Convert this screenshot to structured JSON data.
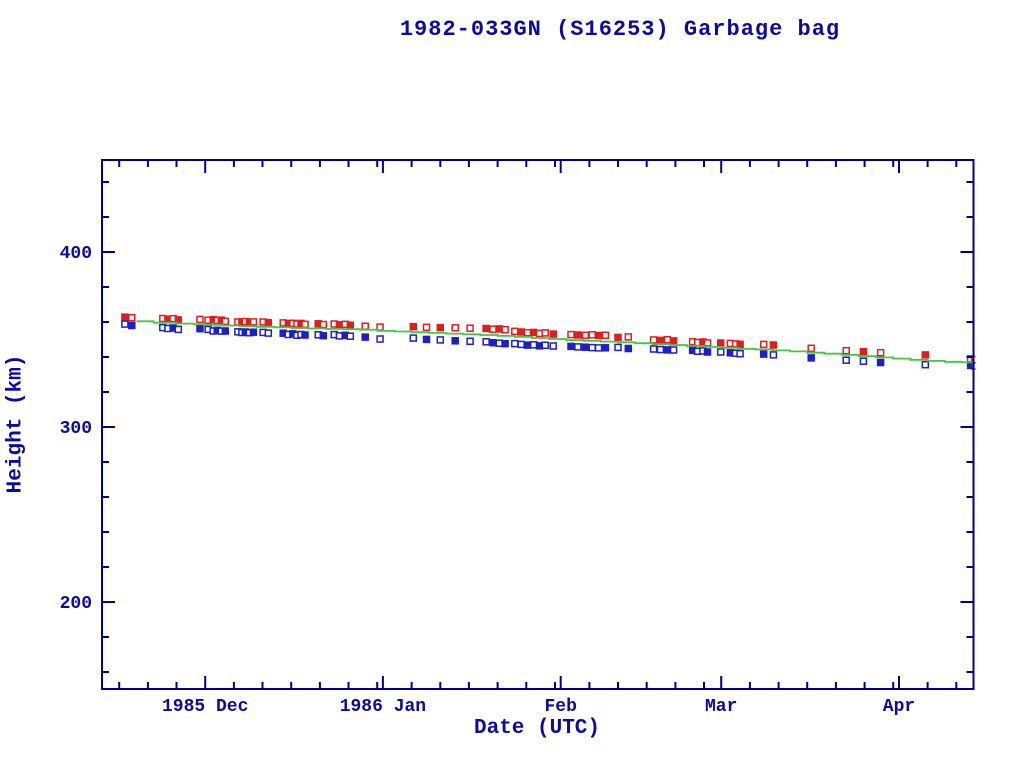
{
  "title": "1982-033GN (S16253) Garbage bag",
  "axes": {
    "x_label": "Date (UTC)",
    "y_label": "Height (km)",
    "x_major_ticks": [
      {
        "day": 18,
        "label": "1985 Dec"
      },
      {
        "day": 49,
        "label": "1986 Jan"
      },
      {
        "day": 80,
        "label": "Feb"
      },
      {
        "day": 108,
        "label": "Mar"
      },
      {
        "day": 139,
        "label": "Apr"
      }
    ],
    "x_minor_tick_days": [
      3,
      8,
      13,
      23,
      28,
      33,
      38,
      43,
      48,
      54,
      59,
      64,
      69,
      74,
      79,
      85,
      90,
      95,
      100,
      105,
      113,
      118,
      123,
      128,
      133,
      138,
      144,
      149
    ],
    "y_major_ticks": [
      {
        "value": 200,
        "label": "200"
      },
      {
        "value": 300,
        "label": "300"
      },
      {
        "value": 400,
        "label": "400"
      }
    ],
    "y_minor_tick_values": [
      160,
      180,
      220,
      240,
      260,
      280,
      320,
      340,
      360,
      380,
      420,
      440
    ]
  },
  "colors": {
    "frame": "#000090",
    "text": "#0b0ba0",
    "apogee": "#dd1f1f",
    "perigee": "#1f1fc8",
    "fit_line": "#44c544",
    "background": "#ffffff"
  },
  "chart_data": {
    "type": "scatter",
    "title": "1982-033GN (S16253) Garbage bag",
    "xlabel": "Date (UTC)",
    "ylabel": "Height (km)",
    "x_encoding": "days from left plot edge (mid-Nov 1985); Dec 1=18, Jan 1=49, Feb 1=80, Mar 1=108, Apr 1=139",
    "xlim_days": [
      0,
      152
    ],
    "ylim": [
      150.3,
      452.6
    ],
    "grid": false,
    "legend": "none",
    "series": [
      {
        "name": "apogee height",
        "marker": "square",
        "color": "#dd1f1f",
        "points": [
          [
            4.0,
            362.8
          ],
          [
            5.2,
            362.5
          ],
          [
            10.6,
            362.0
          ],
          [
            11.5,
            361.6
          ],
          [
            12.4,
            361.9
          ],
          [
            13.3,
            361.2
          ],
          [
            17.1,
            361.5
          ],
          [
            18.5,
            361.0
          ],
          [
            19.4,
            361.4
          ],
          [
            20.1,
            360.9
          ],
          [
            20.8,
            361.1
          ],
          [
            21.5,
            360.4
          ],
          [
            23.7,
            360.1
          ],
          [
            24.4,
            360.0
          ],
          [
            25.0,
            360.3
          ],
          [
            25.7,
            359.9
          ],
          [
            26.4,
            360.1
          ],
          [
            28.1,
            360.0
          ],
          [
            29.0,
            359.6
          ],
          [
            31.6,
            359.5
          ],
          [
            32.5,
            359.1
          ],
          [
            33.3,
            359.3
          ],
          [
            34.0,
            358.8
          ],
          [
            34.7,
            359.2
          ],
          [
            35.4,
            358.7
          ],
          [
            37.7,
            359.0
          ],
          [
            38.6,
            358.6
          ],
          [
            40.5,
            358.9
          ],
          [
            41.4,
            358.4
          ],
          [
            42.4,
            358.7
          ],
          [
            43.3,
            358.2
          ],
          [
            45.9,
            357.6
          ],
          [
            48.5,
            357.1
          ],
          [
            54.3,
            357.4
          ],
          [
            56.6,
            357.0
          ],
          [
            59.0,
            356.8
          ],
          [
            61.6,
            356.7
          ],
          [
            64.2,
            356.5
          ],
          [
            67.0,
            356.3
          ],
          [
            68.2,
            355.9
          ],
          [
            69.3,
            356.1
          ],
          [
            70.3,
            355.6
          ],
          [
            72.0,
            354.7
          ],
          [
            73.1,
            354.3
          ],
          [
            74.2,
            353.9
          ],
          [
            75.3,
            354.1
          ],
          [
            76.3,
            353.5
          ],
          [
            77.3,
            353.8
          ],
          [
            78.7,
            353.1
          ],
          [
            81.8,
            352.8
          ],
          [
            83.0,
            352.6
          ],
          [
            84.3,
            352.4
          ],
          [
            85.5,
            352.7
          ],
          [
            86.6,
            352.3
          ],
          [
            87.8,
            352.5
          ],
          [
            90.0,
            351.2
          ],
          [
            91.8,
            351.5
          ],
          [
            96.2,
            349.8
          ],
          [
            97.4,
            349.5
          ],
          [
            98.6,
            349.9
          ],
          [
            99.7,
            349.2
          ],
          [
            103.0,
            348.7
          ],
          [
            103.9,
            348.3
          ],
          [
            104.8,
            348.6
          ],
          [
            105.6,
            348.1
          ],
          [
            107.9,
            348.0
          ],
          [
            109.6,
            347.8
          ],
          [
            110.5,
            347.5
          ],
          [
            111.3,
            347.3
          ],
          [
            115.4,
            347.2
          ],
          [
            117.1,
            346.9
          ],
          [
            123.7,
            345.0
          ],
          [
            129.8,
            343.6
          ],
          [
            132.8,
            343.1
          ],
          [
            135.8,
            342.5
          ],
          [
            143.6,
            341.2
          ],
          [
            151.5,
            339.0
          ],
          [
            152.2,
            338.6
          ]
        ]
      },
      {
        "name": "perigee height",
        "marker": "square",
        "color": "#1f1fc8",
        "points": [
          [
            4.0,
            358.8
          ],
          [
            5.2,
            358.0
          ],
          [
            10.6,
            356.8
          ],
          [
            11.5,
            356.3
          ],
          [
            12.4,
            356.6
          ],
          [
            13.3,
            355.8
          ],
          [
            17.1,
            356.2
          ],
          [
            18.5,
            355.8
          ],
          [
            19.4,
            354.9
          ],
          [
            20.1,
            355.3
          ],
          [
            20.8,
            354.8
          ],
          [
            21.5,
            354.9
          ],
          [
            23.7,
            354.4
          ],
          [
            24.4,
            354.0
          ],
          [
            25.0,
            354.3
          ],
          [
            25.7,
            353.9
          ],
          [
            26.4,
            354.2
          ],
          [
            28.1,
            354.1
          ],
          [
            29.0,
            353.7
          ],
          [
            31.6,
            353.6
          ],
          [
            32.5,
            352.9
          ],
          [
            33.3,
            353.3
          ],
          [
            34.0,
            352.4
          ],
          [
            34.7,
            352.9
          ],
          [
            35.4,
            352.6
          ],
          [
            37.7,
            352.7
          ],
          [
            38.6,
            352.2
          ],
          [
            40.5,
            352.8
          ],
          [
            41.4,
            352.1
          ],
          [
            42.4,
            352.4
          ],
          [
            43.3,
            351.9
          ],
          [
            45.9,
            351.4
          ],
          [
            48.5,
            350.3
          ],
          [
            54.3,
            350.8
          ],
          [
            56.6,
            350.1
          ],
          [
            59.0,
            349.8
          ],
          [
            61.6,
            349.3
          ],
          [
            64.2,
            349.0
          ],
          [
            67.0,
            348.7
          ],
          [
            68.2,
            348.2
          ],
          [
            69.3,
            347.9
          ],
          [
            70.3,
            347.6
          ],
          [
            72.0,
            347.7
          ],
          [
            73.1,
            347.2
          ],
          [
            74.2,
            346.8
          ],
          [
            75.3,
            347.0
          ],
          [
            76.3,
            346.4
          ],
          [
            77.3,
            346.7
          ],
          [
            78.7,
            346.3
          ],
          [
            81.8,
            346.1
          ],
          [
            83.0,
            345.8
          ],
          [
            84.3,
            345.6
          ],
          [
            85.5,
            345.4
          ],
          [
            86.6,
            345.2
          ],
          [
            87.8,
            345.3
          ],
          [
            90.0,
            345.5
          ],
          [
            91.8,
            344.9
          ],
          [
            96.2,
            344.6
          ],
          [
            97.4,
            344.3
          ],
          [
            98.6,
            344.1
          ],
          [
            99.7,
            344.0
          ],
          [
            103.0,
            343.8
          ],
          [
            103.9,
            343.3
          ],
          [
            104.8,
            343.5
          ],
          [
            105.6,
            342.9
          ],
          [
            107.9,
            342.9
          ],
          [
            109.6,
            342.4
          ],
          [
            110.5,
            342.2
          ],
          [
            111.3,
            341.9
          ],
          [
            115.4,
            341.7
          ],
          [
            117.1,
            341.2
          ],
          [
            123.7,
            339.5
          ],
          [
            129.8,
            338.2
          ],
          [
            132.8,
            337.6
          ],
          [
            135.8,
            336.9
          ],
          [
            143.6,
            335.6
          ],
          [
            151.5,
            335.2
          ],
          [
            152.2,
            334.9
          ]
        ]
      },
      {
        "name": "mean height fit",
        "type": "step-line",
        "color": "#44c544",
        "points": [
          [
            6,
            360.4
          ],
          [
            9,
            359.6
          ],
          [
            13,
            359.1
          ],
          [
            16,
            358.7
          ],
          [
            18,
            358.4
          ],
          [
            21,
            358.0
          ],
          [
            24,
            357.6
          ],
          [
            27,
            357.3
          ],
          [
            30,
            357.0
          ],
          [
            33,
            356.6
          ],
          [
            36,
            356.3
          ],
          [
            39,
            356.1
          ],
          [
            42,
            355.9
          ],
          [
            45,
            355.6
          ],
          [
            48,
            355.0
          ],
          [
            51,
            354.6
          ],
          [
            54,
            354.2
          ],
          [
            57,
            353.8
          ],
          [
            60,
            353.4
          ],
          [
            63,
            353.0
          ],
          [
            66,
            352.6
          ],
          [
            69,
            352.1
          ],
          [
            72,
            351.5
          ],
          [
            75,
            350.9
          ],
          [
            78,
            350.3
          ],
          [
            81,
            349.7
          ],
          [
            84,
            349.2
          ],
          [
            87,
            348.8
          ],
          [
            90,
            348.4
          ],
          [
            93,
            347.9
          ],
          [
            96,
            347.4
          ],
          [
            99,
            346.9
          ],
          [
            102,
            346.3
          ],
          [
            105,
            345.8
          ],
          [
            108,
            345.3
          ],
          [
            111,
            344.7
          ],
          [
            114,
            344.3
          ],
          [
            117,
            343.8
          ],
          [
            120,
            343.2
          ],
          [
            123,
            342.5
          ],
          [
            126,
            341.9
          ],
          [
            129,
            341.2
          ],
          [
            132,
            340.5
          ],
          [
            135,
            339.8
          ],
          [
            138,
            339.1
          ],
          [
            141,
            338.4
          ],
          [
            144,
            337.8
          ],
          [
            147,
            337.3
          ],
          [
            150,
            337.0
          ],
          [
            152,
            336.7
          ]
        ]
      }
    ]
  }
}
